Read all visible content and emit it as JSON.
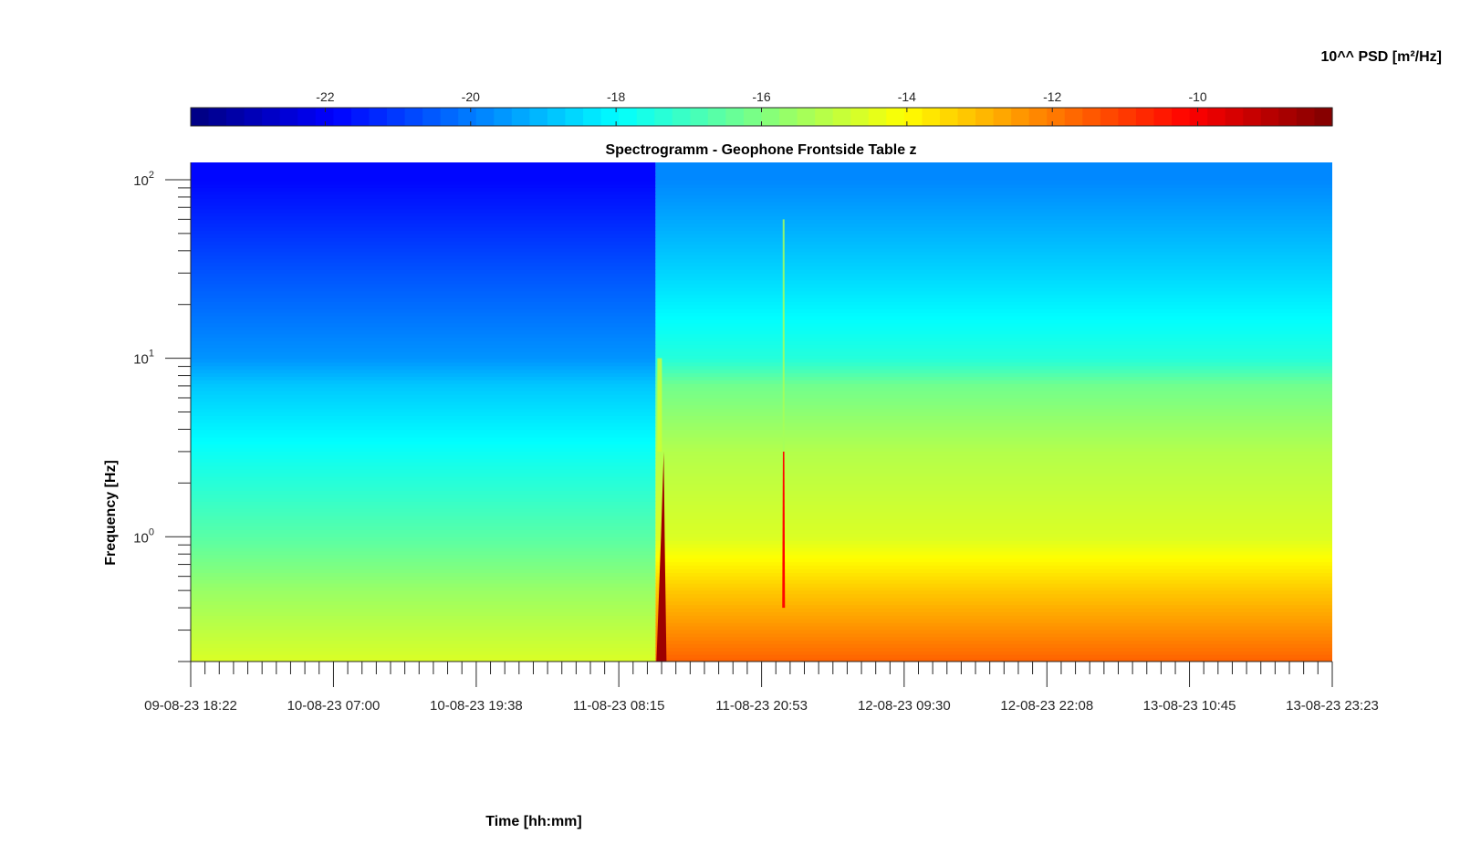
{
  "chart_data": {
    "type": "heatmap",
    "title": "Spectrogramm - Geophone Frontside Table z",
    "xlabel": "Time [hh:mm]",
    "ylabel": "Frequency [Hz]",
    "colorbar_label": "10^^ PSD [m²/Hz]",
    "colorbar_ticks": [
      -22,
      -20,
      -18,
      -16,
      -14,
      -12,
      -10
    ],
    "colorbar_range": [
      -23.85,
      -8.15
    ],
    "colormap": "jet",
    "x_ticks": [
      "09-08-23 18:22",
      "10-08-23 07:00",
      "10-08-23 19:38",
      "11-08-23 08:15",
      "11-08-23 20:53",
      "12-08-23 09:30",
      "12-08-23 22:08",
      "13-08-23 10:45",
      "13-08-23 23:23"
    ],
    "y_scale": "log",
    "y_range": [
      0.2,
      125
    ],
    "y_ticks": [
      {
        "base": "10",
        "exp": "0",
        "value": 1
      },
      {
        "base": "10",
        "exp": "1",
        "value": 10
      },
      {
        "base": "10",
        "exp": "2",
        "value": 100
      }
    ],
    "events": [
      {
        "time": "11-08-23 11:30",
        "description": "broadband high energy burst, change of noise level"
      },
      {
        "time": "11-08-23 22:50",
        "description": "short broadband burst"
      }
    ],
    "psd_profile_before": [
      {
        "freq": 0.2,
        "log_psd": -14.6
      },
      {
        "freq": 0.5,
        "log_psd": -15.6
      },
      {
        "freq": 1,
        "log_psd": -16.6
      },
      {
        "freq": 3,
        "log_psd": -17.8
      },
      {
        "freq": 7,
        "log_psd": -18.8
      },
      {
        "freq": 10,
        "log_psd": -19.6
      },
      {
        "freq": 30,
        "log_psd": -20.6
      },
      {
        "freq": 100,
        "log_psd": -21.8
      }
    ],
    "psd_profile_after": [
      {
        "freq": 0.2,
        "log_psd": -11.6
      },
      {
        "freq": 0.5,
        "log_psd": -13.2
      },
      {
        "freq": 1,
        "log_psd": -14.6
      },
      {
        "freq": 3,
        "log_psd": -15.2
      },
      {
        "freq": 7,
        "log_psd": -16.2
      },
      {
        "freq": 10,
        "log_psd": -17.4
      },
      {
        "freq": 30,
        "log_psd": -18.6
      },
      {
        "freq": 100,
        "log_psd": -19.8
      }
    ]
  }
}
